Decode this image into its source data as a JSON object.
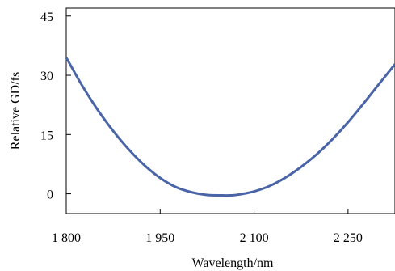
{
  "chart_data": {
    "type": "line",
    "title": "",
    "xlabel": "Wavelength/nm",
    "ylabel": "Relative GD/fs",
    "xlim": [
      1800,
      2325
    ],
    "ylim": [
      -5,
      47
    ],
    "x_ticks": [
      1800,
      1950,
      2100,
      2250
    ],
    "x_tick_labels": [
      "1 800",
      "1 950",
      "2 100",
      "2 250"
    ],
    "y_ticks": [
      0,
      15,
      30,
      45
    ],
    "y_tick_labels": [
      "0",
      "15",
      "30",
      "45"
    ],
    "grid": false,
    "legend": "none",
    "series": [
      {
        "color": "#4a64a8",
        "x": [
          1800,
          1825,
          1850,
          1875,
          1900,
          1925,
          1950,
          1975,
          2000,
          2025,
          2050,
          2062,
          2075,
          2100,
          2125,
          2150,
          2175,
          2200,
          2225,
          2250,
          2275,
          2300,
          2325
        ],
        "y": [
          34.5,
          27.5,
          21.3,
          15.9,
          11.2,
          7.2,
          4.0,
          1.7,
          0.4,
          -0.3,
          -0.4,
          -0.4,
          -0.2,
          0.6,
          2.0,
          4.1,
          6.8,
          10.0,
          13.8,
          18.1,
          22.9,
          27.9,
          32.8
        ]
      }
    ]
  }
}
